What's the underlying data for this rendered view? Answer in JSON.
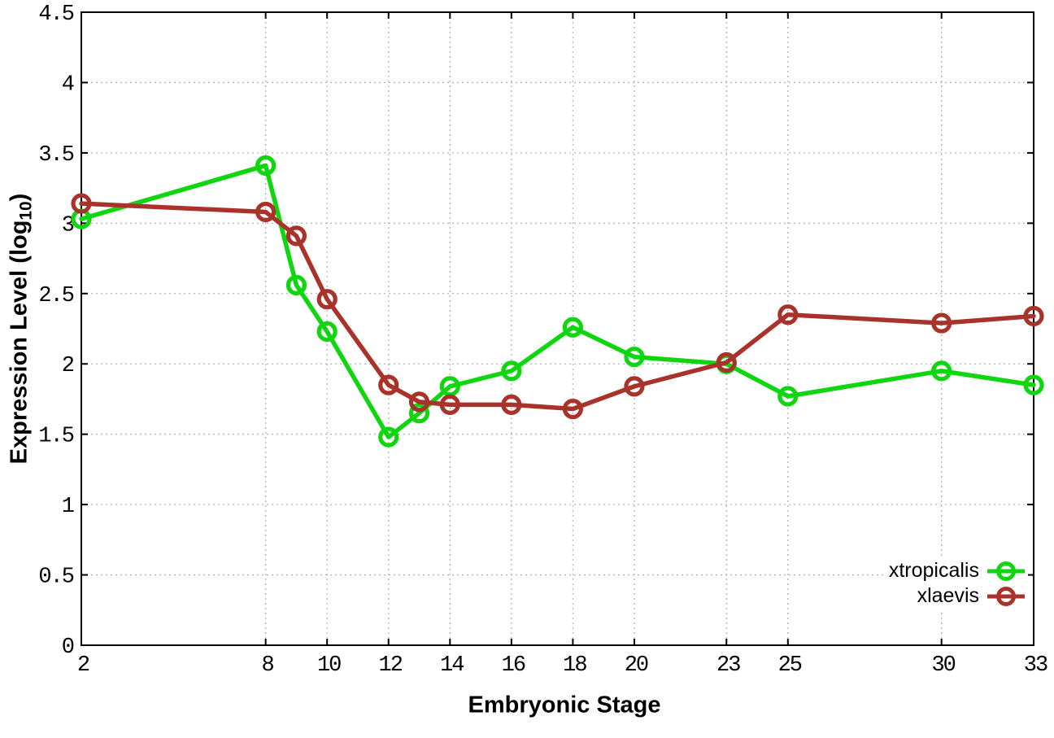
{
  "window": {
    "background": "#ffffff"
  },
  "axes": {
    "x": {
      "label": "Embryonic Stage",
      "ticks": [
        2,
        8,
        10,
        12,
        14,
        16,
        18,
        20,
        23,
        25,
        30,
        33
      ]
    },
    "y": {
      "label_pre": "Expression Level (log",
      "label_sub": "10",
      "label_post": ")",
      "ticks": [
        0,
        0.5,
        1,
        1.5,
        2,
        2.5,
        3,
        3.5,
        4,
        4.5
      ]
    }
  },
  "chart_data": {
    "type": "line",
    "title": "",
    "xlabel": "Embryonic Stage",
    "ylabel": "Expression Level (log10)",
    "x": [
      2,
      8,
      9,
      10,
      12,
      13,
      14,
      16,
      18,
      20,
      23,
      25,
      30,
      33
    ],
    "x_ticks": [
      2,
      8,
      10,
      12,
      14,
      16,
      18,
      20,
      23,
      25,
      30,
      33
    ],
    "y_ticks": [
      0,
      0.5,
      1,
      1.5,
      2,
      2.5,
      3,
      3.5,
      4,
      4.5
    ],
    "xlim": [
      2,
      33
    ],
    "ylim": [
      0,
      4.5
    ],
    "grid": true,
    "marker": "open-circle",
    "legend_position": "bottom-right",
    "series": [
      {
        "name": "xtropicalis",
        "color": "#0fd60f",
        "values": [
          3.03,
          3.41,
          2.56,
          2.23,
          1.48,
          1.65,
          1.84,
          1.95,
          2.26,
          2.05,
          2.0,
          1.77,
          1.95,
          1.85
        ]
      },
      {
        "name": "xlaevis",
        "color": "#a8332b",
        "values": [
          3.14,
          3.08,
          2.91,
          2.46,
          1.85,
          1.73,
          1.71,
          1.71,
          1.68,
          1.84,
          2.01,
          2.35,
          2.29,
          2.34
        ]
      }
    ]
  },
  "colors": {
    "axis": "#000000",
    "grid": "#b5b5b5",
    "tick_text": "#000000"
  }
}
